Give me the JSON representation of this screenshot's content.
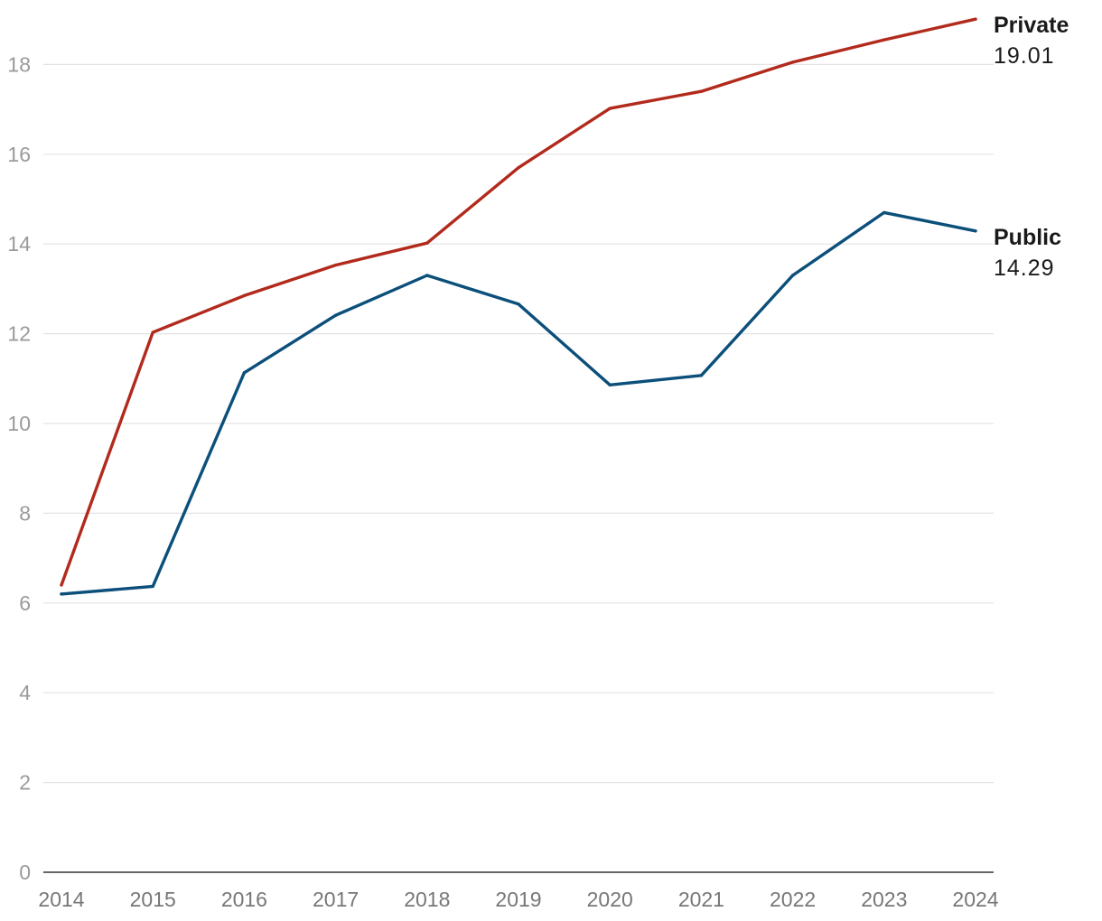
{
  "chart_data": {
    "type": "line",
    "title": "",
    "xlabel": "",
    "ylabel": "",
    "x": [
      "2014",
      "2015",
      "2016",
      "2017",
      "2018",
      "2019",
      "2020",
      "2021",
      "2022",
      "2023",
      "2024"
    ],
    "ylim": [
      0,
      19
    ],
    "yticks": [
      "0",
      "2",
      "4",
      "6",
      "8",
      "10",
      "12",
      "14",
      "16",
      "18"
    ],
    "grid": true,
    "legend": "direct labels at line ends",
    "series": [
      {
        "name": "Private",
        "end_label": "19.01",
        "color": "#b22a1c",
        "values": [
          6.4,
          12.03,
          12.85,
          13.53,
          14.02,
          15.7,
          17.02,
          17.4,
          18.05,
          18.55,
          19.01
        ]
      },
      {
        "name": "Public",
        "end_label": "14.29",
        "color": "#0b4f7a",
        "values": [
          6.2,
          6.37,
          11.13,
          12.41,
          13.3,
          12.66,
          10.86,
          11.07,
          13.3,
          14.7,
          14.29
        ]
      }
    ]
  }
}
